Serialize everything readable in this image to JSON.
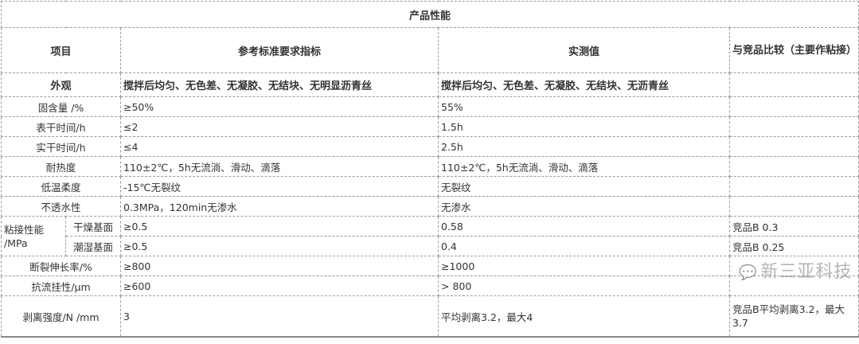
{
  "title": "产品性能",
  "headers": [
    "项目",
    "参考标准要求指标",
    "实测值",
    "与竞品比较（主要作粘接）"
  ],
  "appearance": {
    "item": "外观",
    "standard": "搅拌后均匀、无色差、无凝胶、无结块、无明显沥青丝",
    "measured": "搅拌后均匀、无色差、无凝胶、无结块、无沥青丝",
    "compare": ""
  },
  "rows": [
    {
      "item": "固含量 /%",
      "standard": "≥50%",
      "measured": "55%",
      "compare": ""
    },
    {
      "item": "表干时间/h",
      "standard": "≤2",
      "measured": "1.5h",
      "compare": ""
    },
    {
      "item": "实干时间/h",
      "standard": "≤4",
      "measured": "2.5h",
      "compare": ""
    },
    {
      "item": "耐热度",
      "standard": "110±2℃，5h无流淌、滑动、滴落",
      "measured": "110±2℃，5h无流淌、滑动、滴落",
      "compare": ""
    },
    {
      "item": "低温柔度",
      "standard": "-15℃无裂纹",
      "measured": "无裂纹",
      "compare": ""
    },
    {
      "item": "不透水性",
      "standard": "0.3MPa，120min无渗水",
      "measured": "无渗水",
      "compare": ""
    }
  ],
  "adhesion": {
    "item": "粘接性能 /MPa",
    "sub": [
      {
        "item": "干燥基面",
        "standard": "≥0.5",
        "measured": "0.58",
        "compare": "竞品B 0.3"
      },
      {
        "item": "潮湿基面",
        "standard": "≥0.5",
        "measured": "0.4",
        "compare": "竞品B 0.25"
      }
    ]
  },
  "rows2": [
    {
      "item": "断裂伸长率/%",
      "standard": "≥800",
      "measured": "≥1000",
      "compare": ""
    },
    {
      "item": "抗流挂性/μm",
      "standard": "≥600",
      "measured": "> 800",
      "compare": ""
    },
    {
      "item": "剥离强度/N /mm",
      "standard": "3",
      "measured": "平均剥离3.2，最大4",
      "compare": "竞品B平均剥离3.2，最大3.7"
    }
  ],
  "watermark": {
    "icon": "wechat-icon",
    "text": "新三亚科技"
  }
}
